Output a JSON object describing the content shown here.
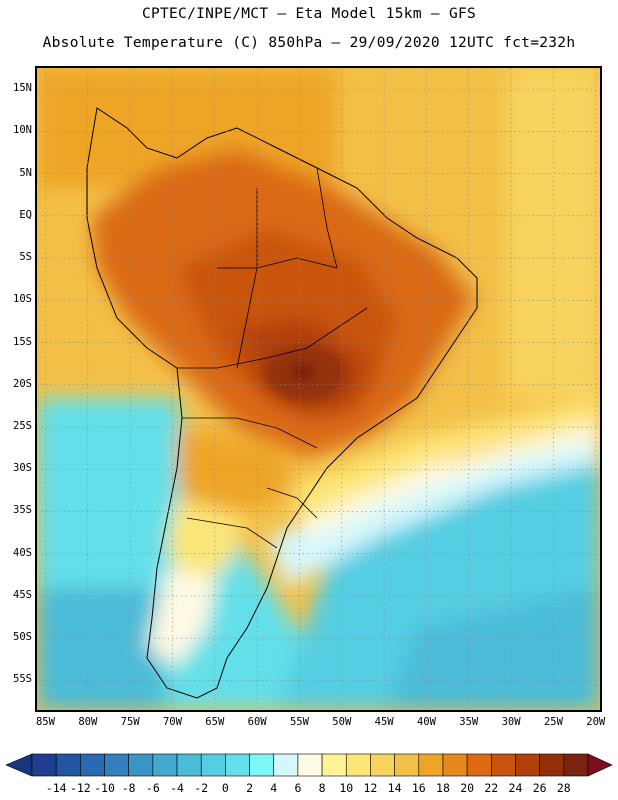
{
  "header": {
    "line1": "CPTEC/INPE/MCT –  Eta Model 15km – GFS",
    "line2": "Absolute Temperature (C) 850hPa – 29/09/2020 12UTC fct=232h"
  },
  "map": {
    "variable": "Absolute Temperature (C)",
    "level": "850hPa",
    "lat_labels": [
      "15N",
      "10N",
      "5N",
      "EQ",
      "5S",
      "10S",
      "15S",
      "20S",
      "25S",
      "30S",
      "35S",
      "40S",
      "45S",
      "50S",
      "55S"
    ],
    "lat_values": [
      15,
      10,
      5,
      0,
      -5,
      -10,
      -15,
      -20,
      -25,
      -30,
      -35,
      -40,
      -45,
      -50,
      -55
    ],
    "lon_labels": [
      "85W",
      "80W",
      "75W",
      "70W",
      "65W",
      "60W",
      "55W",
      "50W",
      "45W",
      "40W",
      "35W",
      "30W",
      "25W",
      "20W"
    ],
    "lon_values": [
      -85,
      -80,
      -75,
      -70,
      -65,
      -60,
      -55,
      -50,
      -45,
      -40,
      -35,
      -30,
      -25,
      -20
    ],
    "extent": {
      "lon_min": -86,
      "lon_max": -19.5,
      "lat_min": -58.5,
      "lat_max": 17.5
    }
  },
  "colorbar": {
    "labels": [
      "-14",
      "-12",
      "-10",
      "-8",
      "-6",
      "-4",
      "-2",
      "0",
      "2",
      "4",
      "6",
      "8",
      "10",
      "12",
      "14",
      "16",
      "18",
      "20",
      "22",
      "24",
      "26",
      "28"
    ],
    "values": [
      -14,
      -12,
      -10,
      -8,
      -6,
      -4,
      -2,
      0,
      2,
      4,
      6,
      8,
      10,
      12,
      14,
      16,
      18,
      20,
      22,
      24,
      26,
      28
    ],
    "colors": [
      "#1e3f8f",
      "#2455a0",
      "#2b6ab0",
      "#3380bd",
      "#3a95c6",
      "#44a8cf",
      "#4bbcd8",
      "#55cde2",
      "#63dfe9",
      "#7df6f6",
      "#d6f7fb",
      "#fffae3",
      "#fff39a",
      "#fde678",
      "#f8d35e",
      "#f3c047",
      "#eea527",
      "#e5891c",
      "#db6a12",
      "#c9540f",
      "#b1400c",
      "#93300c",
      "#7a2410"
    ],
    "under_color": "#1a3580",
    "over_color": "#7a0f20"
  }
}
